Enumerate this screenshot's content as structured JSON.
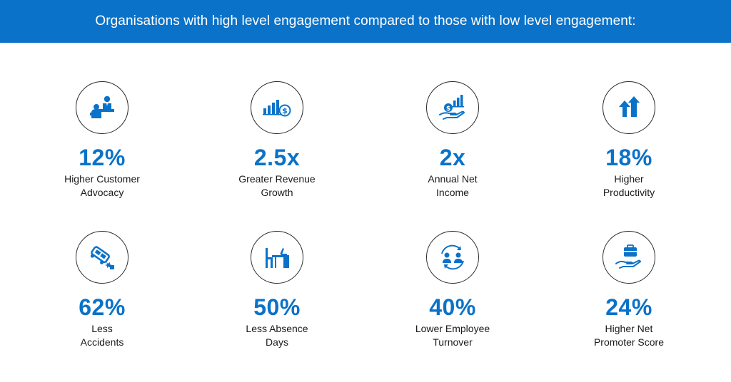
{
  "header": {
    "title": "Organisations with high level engagement compared to those with low level engagement:"
  },
  "colors": {
    "accent": "#0a72c9",
    "header_bg": "#0a72c9",
    "icon_outline": "#2a2a2a"
  },
  "stats": [
    {
      "icon": "customer-service-icon",
      "value": "12%",
      "label_lines": [
        "Higher Customer",
        "Advocacy"
      ]
    },
    {
      "icon": "revenue-growth-icon",
      "value": "2.5x",
      "label_lines": [
        "Greater Revenue",
        "Growth"
      ]
    },
    {
      "icon": "net-income-icon",
      "value": "2x",
      "label_lines": [
        "Annual Net",
        "Income"
      ]
    },
    {
      "icon": "productivity-arrows-icon",
      "value": "18%",
      "label_lines": [
        "Higher",
        "Productivity"
      ]
    },
    {
      "icon": "car-accident-icon",
      "value": "62%",
      "label_lines": [
        "Less",
        "Accidents"
      ]
    },
    {
      "icon": "empty-desk-icon",
      "value": "50%",
      "label_lines": [
        "Less Absence",
        "Days"
      ]
    },
    {
      "icon": "employee-turnover-icon",
      "value": "40%",
      "label_lines": [
        "Lower Employee",
        "Turnover"
      ]
    },
    {
      "icon": "promoter-hand-briefcase-icon",
      "value": "24%",
      "label_lines": [
        "Higher Net",
        "Promoter Score"
      ]
    }
  ]
}
